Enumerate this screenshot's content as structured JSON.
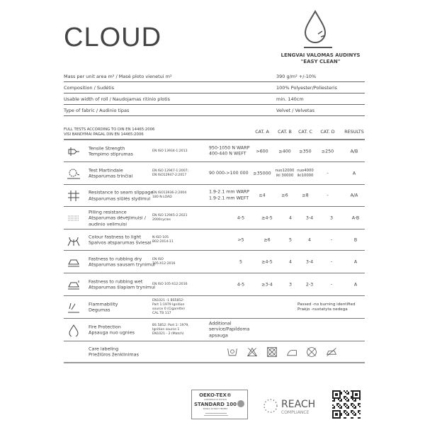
{
  "title": "CLOUD",
  "tagline": [
    "LENGVAI VALOMAS AUDINYS",
    "\"EASY CLEAN\""
  ],
  "specs": [
    {
      "label": "Mass per unit area m² / Masė ploto vienetui m²",
      "value": "390 g/m² +/-10%"
    },
    {
      "label": "Composition / Sudėtis",
      "value": "100% Polyester/Poliesteris"
    },
    {
      "label": "Usable width of roll / Naudojamas ritinio plotis",
      "value": "min. 140cm"
    },
    {
      "label": "Type of fabric / Audinio tipas",
      "value": "Velvet / Velvetas"
    }
  ],
  "tests_header": {
    "line1": "FULL TESTS ACCORDING TO DIN EN 14465:2006",
    "line2": "VISI BANDYMAI PAGAL DIN EN 14465:2006",
    "cols": [
      "CAT. A",
      "CAT. B",
      "CAT. C",
      "CAT. D",
      "RESULTS"
    ]
  },
  "tests": [
    {
      "icon": "tensile-icon",
      "name": "Tensile Strength",
      "name_lt": "Tempimo stiprumas",
      "standard": "EN ISO 13934-1:2013",
      "value": "950-1050 N WARP\n400-440 N WEFT",
      "a": ">600",
      "b": "≥400",
      "c": "≥350",
      "d": "≥250",
      "result": "A/B"
    },
    {
      "icon": "martindale-icon",
      "name": "Test Martindale",
      "name_lt": "Atsparumas trinčiai",
      "standard": "EN ISO 12947-1:2007;\nEN ISO12947-2:2017",
      "value": "90 000->100 000",
      "a": "≥35000",
      "b": "nuo12000\niki 30000",
      "c": "nuo4000\niki10000",
      "d": "-",
      "result": "A"
    },
    {
      "icon": "seam-slippage-icon",
      "name": "Resistance to seam slippage",
      "name_lt": "Atsparumas siūlės slydimui",
      "standard": "EN ISO13936-2:2004\n180 N LOAD",
      "value": "1.9-2.1 mm WARP\n1.9-2.1 mm WEFT",
      "a": "≤4",
      "b": "≥6",
      "c": "≥8",
      "d": "-",
      "result": "A/A"
    },
    {
      "icon": "pilling-icon",
      "name": "Pilling resistance",
      "name_lt": "Atsparumas dėvėjimuisi /\naudinio velimuisi",
      "standard": "EN ISO 12945-2:2021\n2000cycles",
      "value": "",
      "a": "4-5",
      "b": "≥4-5",
      "c": "4",
      "d": "3-4",
      "e": "3",
      "result": "A-B"
    },
    {
      "icon": "light-icon",
      "name": "Colour fastness to light",
      "name_lt": "Spalvos atsparumas šviesai",
      "standard": "N ISO 105\nB02:2014-11",
      "value": "",
      "a": ">5",
      "b": "≥6",
      "c": "5",
      "d": "4",
      "e": "-",
      "result": "B"
    },
    {
      "icon": "rubbing-dry-icon",
      "name": "Fastness to rubbing dry",
      "name_lt": "Atsparumas sausam trynimui",
      "standard": "EN ISO\n105-X12:2016",
      "value": "",
      "a": "5",
      "b": "≥4-5",
      "c": "4",
      "d": "3-4",
      "e": "-",
      "result": "A"
    },
    {
      "icon": "rubbing-wet-icon",
      "name": "Fastness to rubbing wet",
      "name_lt": "Atsparumas šlapiam trynimui",
      "standard": "EN ISO 105-X12:2016",
      "value": "",
      "a": "4-5",
      "b": "≥3-4",
      "c": "3",
      "d": "2-3",
      "e": "-",
      "result": "A"
    },
    {
      "icon": "flammability-icon",
      "name": "Flammability",
      "name_lt": "Degumas",
      "standard": "EN1021 -1 BS5852:\nPart 1:1979 Ignition\nsource 0 (Cigarette)\nCAL TB 117",
      "value": "",
      "result_text": "Passed -no burning identified\nPraėjo -nustatyta nedega"
    },
    {
      "icon": "fire-icon",
      "name": "Fire Protection",
      "name_lt": "Apsauga nuo ugnies",
      "standard": "BS 5852: Part 1: 1979,\nIgnition source 1\nEN1021 - 2 (Match)",
      "value": "Additional\nservice/Papildoma\napsauga"
    },
    {
      "name": "Care labeling",
      "name_lt": "Priežiūros ženklinimas",
      "care_icons": [
        "hand-wash-icon",
        "no-bleach-icon",
        "no-tumble-dry-icon",
        "iron-low-icon",
        "no-dry-clean-icon",
        "no-wet-clean-icon"
      ]
    }
  ],
  "certs": {
    "oeko": {
      "title": "OEKO-TEX®",
      "sub": "CONFIDENCE IN TEXTILES",
      "std": "STANDARD 100",
      "code": "SH010 127007 TESTEX"
    },
    "reach": {
      "title": "REACH",
      "sub": "COMPLIANCE"
    }
  }
}
